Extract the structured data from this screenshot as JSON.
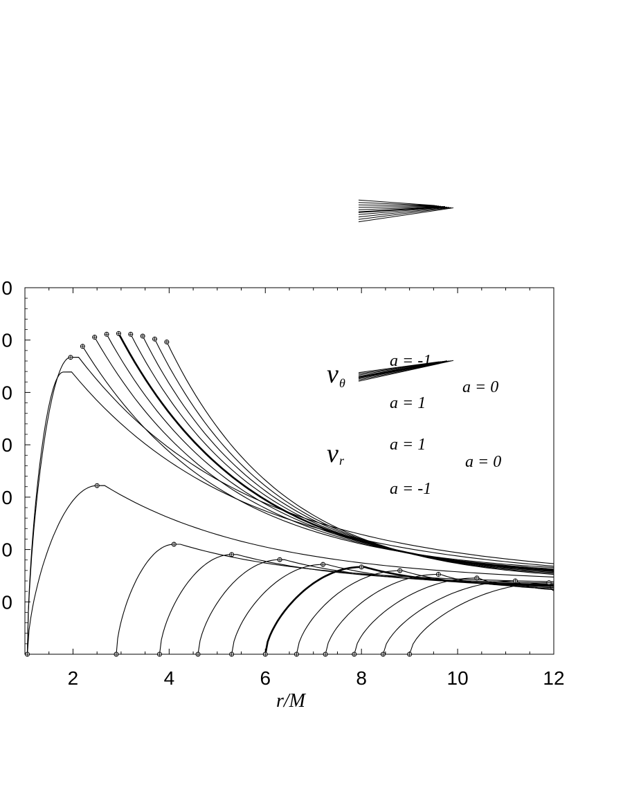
{
  "chart_data": {
    "type": "line",
    "title": "",
    "xlabel": "r/M",
    "xlim": [
      1.0,
      12.0
    ],
    "x_ticks": [
      2,
      4,
      6,
      8,
      10,
      12
    ],
    "x_tick_labels": [
      "2",
      "4",
      "6",
      "8",
      "10",
      "12"
    ],
    "x_minor_step": 0.5,
    "y_tick_labels": [
      "0",
      "0",
      "0",
      "0",
      "0",
      "0",
      "0"
    ],
    "grid": false,
    "annotations": {
      "nu_theta": {
        "symbol": "ν",
        "subscript": "θ",
        "top": "a = -1",
        "right": "a = 0",
        "bottom": "a = 1"
      },
      "nu_r": {
        "symbol": "ν",
        "subscript": "r",
        "top": "a = 1",
        "right": "a = 0",
        "bottom": "a = -1"
      }
    },
    "theta_series": [
      {
        "peak": [
          2.2,
          8.4
        ],
        "end": 4.3
      },
      {
        "peak": [
          2.45,
          8.65
        ],
        "end": 4.2
      },
      {
        "peak": [
          2.7,
          8.73
        ],
        "end": 4.15
      },
      {
        "peak": [
          2.95,
          8.75
        ],
        "end": 4.1,
        "bold": true
      },
      {
        "peak": [
          3.2,
          8.73
        ],
        "end": 4.05
      },
      {
        "peak": [
          3.45,
          8.68
        ],
        "end": 4.0
      },
      {
        "peak": [
          3.7,
          8.6
        ],
        "end": 3.95
      },
      {
        "peak": [
          3.95,
          8.52
        ],
        "end": 3.9
      }
    ],
    "steep_series": [
      {
        "start": 1.05,
        "peak": [
          1.95,
          8.1
        ],
        "end": 4.35
      },
      {
        "start": 1.05,
        "peak": [
          1.8,
          7.7
        ],
        "end": 4.25
      },
      {
        "start": 1.05,
        "peak": [
          2.5,
          4.6
        ],
        "end": 3.95
      }
    ],
    "radial_series": [
      {
        "start": 2.9,
        "peak": [
          4.1,
          3.0
        ],
        "end": 3.85
      },
      {
        "start": 3.8,
        "peak": [
          5.3,
          2.72
        ],
        "end": 3.8
      },
      {
        "start": 4.6,
        "peak": [
          6.3,
          2.58
        ],
        "end": 3.75
      },
      {
        "start": 5.3,
        "peak": [
          7.2,
          2.45
        ],
        "end": 3.72
      },
      {
        "start": 6.0,
        "peak": [
          8.0,
          2.38
        ],
        "end": 3.7,
        "bold": true
      },
      {
        "start": 6.65,
        "peak": [
          8.8,
          2.28
        ],
        "end": 3.65
      },
      {
        "start": 7.25,
        "peak": [
          9.6,
          2.18
        ],
        "end": 3.6
      },
      {
        "start": 7.85,
        "peak": [
          10.4,
          2.08
        ],
        "end": 3.55
      },
      {
        "start": 8.45,
        "peak": [
          11.2,
          2.0
        ],
        "end": 3.5
      },
      {
        "start": 9.0,
        "peak": [
          11.9,
          1.95
        ],
        "end": 3.45
      }
    ],
    "inset": {
      "theta": {
        "x_range": [
          0.15,
          0.48
        ],
        "y": 0.05,
        "spread": 0.018,
        "slope": -0.18,
        "count": 8
      },
      "r": {
        "x_range": [
          0.15,
          0.48
        ],
        "y": 0.25,
        "spread": 0.035,
        "slope": -0.05,
        "count": 10
      }
    }
  }
}
